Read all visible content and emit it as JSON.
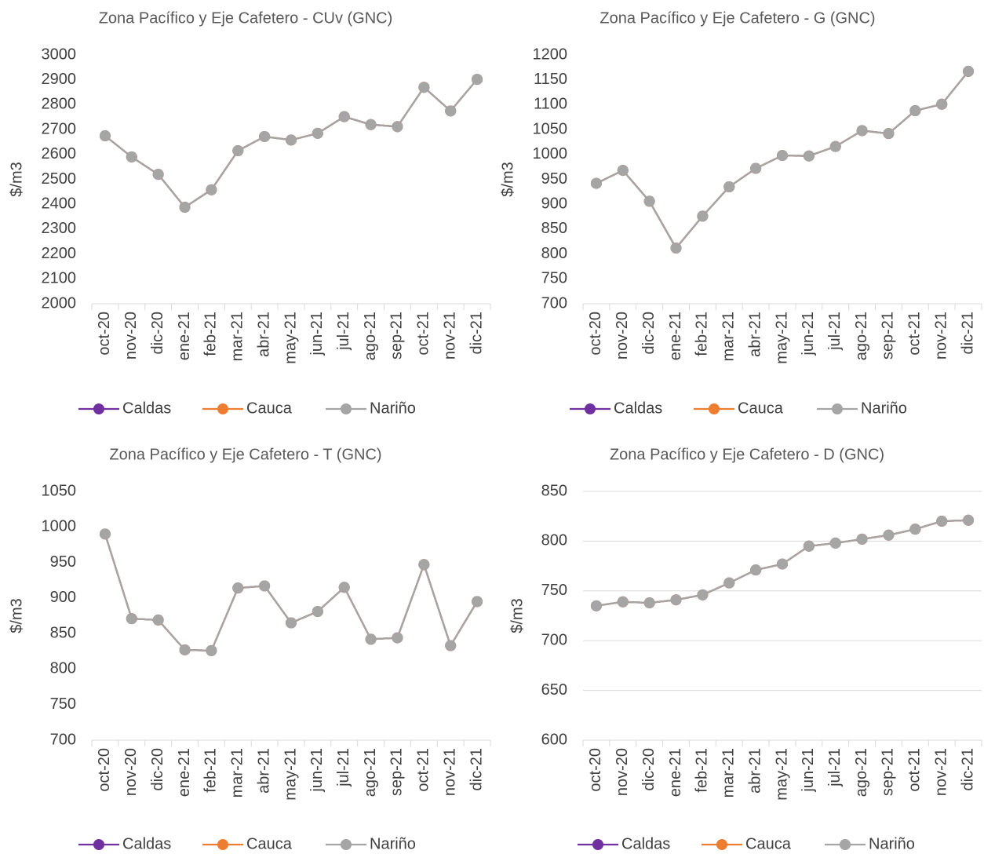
{
  "chart_data": [
    {
      "type": "line",
      "title": "Zona Pacífico y Eje Cafetero  - CUv (GNC)",
      "y_label": "$/m3",
      "categories": [
        "oct-20",
        "nov-20",
        "dic-20",
        "ene-21",
        "feb-21",
        "mar-21",
        "abr-21",
        "may-21",
        "jun-21",
        "jul-21",
        "ago-21",
        "sep-21",
        "oct-21",
        "nov-21",
        "dic-21"
      ],
      "series": [
        {
          "name": "Caldas",
          "color": "#7030a0",
          "values": [
            2675,
            2590,
            2520,
            2388,
            2458,
            2615,
            2672,
            2658,
            2685,
            2752,
            2720,
            2712,
            2870,
            2775,
            2902
          ]
        },
        {
          "name": "Cauca",
          "color": "#ed7d31",
          "values": [
            2675,
            2590,
            2520,
            2388,
            2458,
            2615,
            2672,
            2658,
            2685,
            2752,
            2720,
            2712,
            2870,
            2775,
            2902
          ]
        },
        {
          "name": "Nariño",
          "color": "#a5a5a5",
          "values": [
            2675,
            2590,
            2520,
            2388,
            2458,
            2615,
            2672,
            2658,
            2685,
            2752,
            2720,
            2712,
            2870,
            2775,
            2902
          ]
        }
      ],
      "ylim": [
        2000,
        3000
      ],
      "yticks": [
        2000,
        2100,
        2200,
        2300,
        2400,
        2500,
        2600,
        2700,
        2800,
        2900,
        3000
      ],
      "grid": false,
      "legend": "bottom"
    },
    {
      "type": "line",
      "title": "Zona Pacífico y Eje Cafetero  - G (GNC)",
      "y_label": "$/m3",
      "categories": [
        "oct-20",
        "nov-20",
        "dic-20",
        "ene-21",
        "feb-21",
        "mar-21",
        "abr-21",
        "may-21",
        "jun-21",
        "jul-21",
        "ago-21",
        "sep-21",
        "oct-21",
        "nov-21",
        "dic-21"
      ],
      "series": [
        {
          "name": "Caldas",
          "color": "#7030a0",
          "values": [
            942,
            968,
            906,
            812,
            876,
            935,
            972,
            998,
            997,
            1016,
            1048,
            1042,
            1088,
            1101,
            1167
          ]
        },
        {
          "name": "Cauca",
          "color": "#ed7d31",
          "values": [
            942,
            968,
            906,
            812,
            876,
            935,
            972,
            998,
            997,
            1016,
            1048,
            1042,
            1088,
            1101,
            1167
          ]
        },
        {
          "name": "Nariño",
          "color": "#a5a5a5",
          "values": [
            942,
            968,
            906,
            812,
            876,
            935,
            972,
            998,
            997,
            1016,
            1048,
            1042,
            1088,
            1101,
            1167
          ]
        }
      ],
      "ylim": [
        700,
        1200
      ],
      "yticks": [
        700,
        750,
        800,
        850,
        900,
        950,
        1000,
        1050,
        1100,
        1150,
        1200
      ],
      "grid": false,
      "legend": "bottom"
    },
    {
      "type": "line",
      "title": "Zona Pacífico y Eje Cafetero  - T (GNC)",
      "y_label": "$/m3",
      "categories": [
        "oct-20",
        "nov-20",
        "dic-20",
        "ene-21",
        "feb-21",
        "mar-21",
        "abr-21",
        "may-21",
        "jun-21",
        "jul-21",
        "ago-21",
        "sep-21",
        "oct-21",
        "nov-21",
        "dic-21"
      ],
      "series": [
        {
          "name": "Caldas",
          "color": "#7030a0",
          "values": [
            990,
            871,
            869,
            827,
            826,
            914,
            917,
            865,
            881,
            915,
            842,
            844,
            947,
            833,
            895
          ]
        },
        {
          "name": "Cauca",
          "color": "#ed7d31",
          "values": [
            990,
            871,
            869,
            827,
            826,
            914,
            917,
            865,
            881,
            915,
            842,
            844,
            947,
            833,
            895
          ]
        },
        {
          "name": "Nariño",
          "color": "#a5a5a5",
          "values": [
            990,
            871,
            869,
            827,
            826,
            914,
            917,
            865,
            881,
            915,
            842,
            844,
            947,
            833,
            895
          ]
        }
      ],
      "ylim": [
        700,
        1050
      ],
      "yticks": [
        700,
        750,
        800,
        850,
        900,
        950,
        1000,
        1050
      ],
      "grid": false,
      "legend": "bottom"
    },
    {
      "type": "line",
      "title": "Zona Pacífico y Eje Cafetero  - D (GNC)",
      "y_label": "$/m3",
      "categories": [
        "oct-20",
        "nov-20",
        "dic-20",
        "ene-21",
        "feb-21",
        "mar-21",
        "abr-21",
        "may-21",
        "jun-21",
        "jul-21",
        "ago-21",
        "sep-21",
        "oct-21",
        "nov-21",
        "dic-21"
      ],
      "series": [
        {
          "name": "Caldas",
          "color": "#7030a0",
          "values": [
            735,
            739,
            738,
            741,
            746,
            758,
            771,
            777,
            795,
            798,
            802,
            806,
            812,
            820,
            821
          ]
        },
        {
          "name": "Cauca",
          "color": "#ed7d31",
          "values": [
            735,
            739,
            738,
            741,
            746,
            758,
            771,
            777,
            795,
            798,
            802,
            806,
            812,
            820,
            821
          ]
        },
        {
          "name": "Nariño",
          "color": "#a5a5a5",
          "values": [
            735,
            739,
            738,
            741,
            746,
            758,
            771,
            777,
            795,
            798,
            802,
            806,
            812,
            820,
            821
          ]
        }
      ],
      "ylim": [
        600,
        850
      ],
      "yticks": [
        600,
        650,
        700,
        750,
        800,
        850
      ],
      "grid": true,
      "legend": "bottom"
    }
  ]
}
